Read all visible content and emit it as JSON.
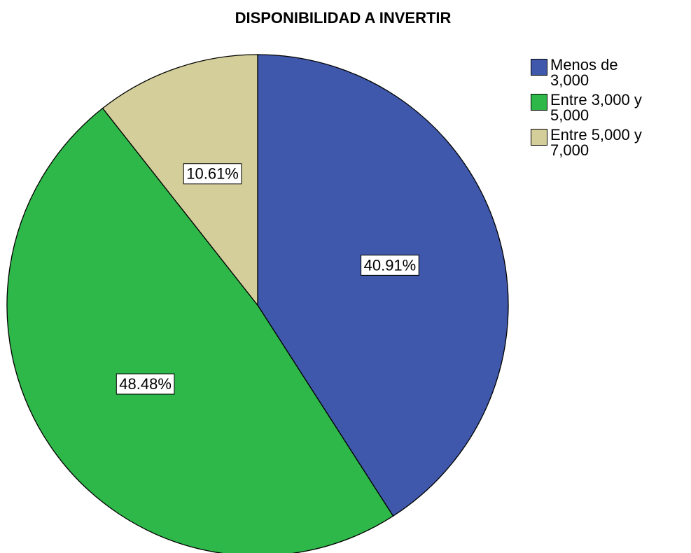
{
  "chart_data": {
    "type": "pie",
    "title": "DISPONIBILIDAD A INVERTIR",
    "categories": [
      "Menos de 3,000",
      "Entre 3,000 y 5,000",
      "Entre 5,000 y 7,000"
    ],
    "values": [
      40.91,
      48.48,
      10.61
    ],
    "value_labels": [
      "40.91%",
      "48.48%",
      "10.61%"
    ],
    "colors": [
      "#3f58ab",
      "#2fb84a",
      "#d3ce9a"
    ],
    "legend": "top-right"
  }
}
